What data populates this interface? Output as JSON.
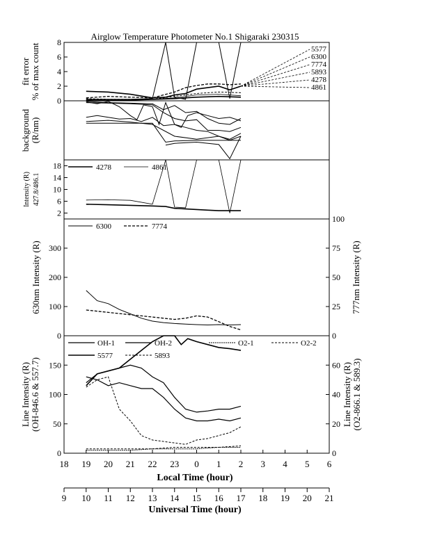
{
  "title": "Airglow Temperature Photometer No.1  Shigaraki  230315",
  "x_axes": {
    "local": {
      "label": "Local Time (hour)",
      "ticks": [
        "18",
        "19",
        "20",
        "21",
        "22",
        "23",
        "0",
        "1",
        "2",
        "3",
        "4",
        "5",
        "6"
      ]
    },
    "universal": {
      "label": "Universal Time (hour)",
      "ticks": [
        "9",
        "10",
        "11",
        "12",
        "13",
        "14",
        "15",
        "16",
        "17",
        "18",
        "19",
        "20",
        "21"
      ]
    }
  },
  "chart_data": [
    {
      "panel": "fit-error",
      "type": "line",
      "ylabel": "fit error\n% of max count",
      "ylim": [
        0,
        8
      ],
      "yticks": [
        "0",
        "2",
        "4",
        "6",
        "8"
      ],
      "x_units": "universal time (hour)",
      "legend": [
        "5577",
        "6300",
        "7774",
        "5893",
        "4278",
        "4861"
      ],
      "series": [
        {
          "name": "5577",
          "x": [
            10,
            11,
            12,
            13,
            13.6,
            14,
            14.5,
            15,
            15.5,
            16,
            16.5,
            17
          ],
          "y": [
            1.3,
            1.2,
            0.9,
            0.4,
            0.5,
            0.8,
            1.0,
            1.6,
            1.8,
            2.0,
            1.5,
            2.0
          ]
        },
        {
          "name": "6300",
          "x": [
            10,
            11,
            12,
            13,
            13.6,
            14,
            14.5,
            15,
            15.5,
            16,
            16.5,
            17
          ],
          "y": [
            0.2,
            0.2,
            0.2,
            0.3,
            8.0,
            0.5,
            0.2,
            8.0,
            8.0,
            8.0,
            0.3,
            8.0
          ]
        },
        {
          "name": "7774",
          "x": [
            10,
            11,
            12,
            13,
            14,
            14.5,
            15,
            15.5,
            16,
            16.5,
            17
          ],
          "y": [
            0.4,
            0.6,
            0.5,
            0.4,
            1.2,
            1.8,
            2.1,
            2.3,
            2.3,
            2.2,
            2.3
          ]
        },
        {
          "name": "5893",
          "x": [
            10,
            11,
            12,
            13,
            14,
            15,
            16,
            17
          ],
          "y": [
            0.3,
            0.2,
            0.2,
            0.2,
            0.6,
            1.0,
            1.2,
            1.1
          ]
        },
        {
          "name": "4278",
          "x": [
            10,
            11,
            12,
            13,
            14,
            15,
            16,
            17
          ],
          "y": [
            0.1,
            0.1,
            0.1,
            0.2,
            0.3,
            0.5,
            0.6,
            0.5
          ]
        },
        {
          "name": "4861",
          "x": [
            10,
            11,
            12,
            13,
            14,
            15,
            16,
            17
          ],
          "y": [
            0.2,
            0.1,
            0.2,
            0.2,
            0.4,
            0.8,
            0.9,
            0.7
          ]
        }
      ]
    },
    {
      "panel": "background",
      "type": "line",
      "ylabel": "background\n(R/nm)",
      "ylim": [
        0,
        100
      ],
      "x_units": "universal time (hour)",
      "series": [
        {
          "x": [
            10,
            10.5,
            11,
            11.5,
            12,
            12.3,
            12.6,
            13,
            13.3,
            13.6,
            14,
            14.3,
            14.6,
            15,
            15.5,
            16,
            16.5,
            17
          ],
          "y": [
            98,
            95,
            99,
            90,
            75,
            68,
            93,
            90,
            60,
            97,
            60,
            55,
            75,
            80,
            75,
            70,
            72,
            66
          ]
        },
        {
          "x": [
            10,
            11,
            12,
            13,
            13.5,
            14,
            14.5,
            15,
            15.5,
            16,
            16.5,
            17
          ],
          "y": [
            99,
            97,
            96,
            95,
            85,
            92,
            80,
            82,
            70,
            62,
            60,
            70
          ]
        },
        {
          "x": [
            10,
            11,
            12,
            13,
            13.5,
            14,
            14.5,
            15,
            15.5,
            16,
            16.5,
            17
          ],
          "y": [
            97,
            96,
            95,
            93,
            80,
            70,
            66,
            68,
            50,
            50,
            48,
            55
          ]
        },
        {
          "x": [
            10,
            10.5,
            11,
            11.5,
            12,
            12.5,
            13,
            13.5,
            14,
            14.5,
            15,
            15.5,
            16,
            16.5,
            17
          ],
          "y": [
            72,
            75,
            72,
            69,
            70,
            65,
            72,
            58,
            60,
            55,
            50,
            48,
            40,
            35,
            45
          ]
        },
        {
          "x": [
            10,
            11,
            12,
            13,
            14,
            15,
            16,
            16.5,
            17
          ],
          "y": [
            65,
            67,
            64,
            60,
            40,
            35,
            40,
            33,
            40
          ]
        },
        {
          "x": [
            10,
            11,
            12,
            13,
            13.6,
            14,
            15,
            16,
            17
          ],
          "y": [
            62,
            62,
            62,
            62,
            30,
            32,
            33,
            33,
            33
          ]
        },
        {
          "x": [
            13.6,
            14,
            15,
            16,
            16.5,
            17
          ],
          "y": [
            25,
            28,
            30,
            26,
            2,
            40
          ]
        }
      ]
    },
    {
      "panel": "intensity-427-486",
      "type": "line",
      "ylabel": "Intensity (R)\n427.8/486.1",
      "ylim": [
        0,
        20
      ],
      "yticks": [
        "2",
        "6",
        "10",
        "14",
        "18"
      ],
      "x_units": "universal time (hour)",
      "legend": [
        "4278",
        "4861"
      ],
      "series": [
        {
          "name": "4278",
          "x": [
            10,
            11,
            12,
            13,
            13.6,
            14,
            14.5,
            15,
            15.5,
            16,
            16.5,
            17
          ],
          "y": [
            5.0,
            4.8,
            4.6,
            4.4,
            4.2,
            3.6,
            3.4,
            3.2,
            3.0,
            2.8,
            2.8,
            2.8
          ]
        },
        {
          "name": "4861",
          "x": [
            10,
            11,
            12,
            13,
            13.6,
            14,
            14.5,
            15,
            15.5,
            16,
            16.5,
            17
          ],
          "y": [
            6.4,
            6.5,
            6.3,
            5.0,
            20,
            4.0,
            3.8,
            20,
            20,
            20,
            2.0,
            20
          ]
        }
      ]
    },
    {
      "panel": "630-777",
      "type": "line",
      "ylabel": "630nm Intensity (R)",
      "ylabel_right": "777nm Intensity (R)",
      "ylim": [
        0,
        400
      ],
      "ylim_right": [
        0,
        100
      ],
      "yticks": [
        "0",
        "100",
        "200",
        "300"
      ],
      "yticks_right": [
        "0",
        "25",
        "50",
        "75",
        "100"
      ],
      "x_units": "universal time (hour)",
      "legend": [
        "6300",
        "7774"
      ],
      "series": [
        {
          "name": "6300",
          "axis": "left",
          "x": [
            10,
            10.5,
            11,
            11.5,
            12,
            12.5,
            13,
            13.5,
            14,
            14.5,
            15,
            15.5,
            16,
            16.5,
            17
          ],
          "y": [
            155,
            120,
            110,
            90,
            75,
            60,
            50,
            45,
            42,
            40,
            38,
            37,
            38,
            37,
            38
          ]
        },
        {
          "name": "7774",
          "axis": "right",
          "x": [
            10,
            10.5,
            11,
            11.5,
            12,
            12.5,
            13,
            13.5,
            14,
            14.5,
            15,
            15.5,
            16,
            16.5,
            17
          ],
          "y": [
            22,
            21,
            20,
            19,
            18,
            17,
            16,
            15,
            14,
            15,
            17,
            16,
            12,
            8,
            5
          ]
        }
      ]
    },
    {
      "panel": "oh-o2-lines",
      "type": "line",
      "ylabel": "Line Intensity (R)\n(OH-846.6 & 557.7)",
      "ylabel_right": "Line Intensity (R)\n(O2-866.1 & 589.3)",
      "ylim": [
        0,
        200
      ],
      "ylim_right": [
        0,
        80
      ],
      "yticks": [
        "0",
        "50",
        "100",
        "150"
      ],
      "yticks_right": [
        "0",
        "20",
        "40",
        "60"
      ],
      "x_units": "universal time (hour)",
      "legend": [
        "OH-1",
        "OH-2",
        "O2-1",
        "O2-2",
        "5577",
        "5893"
      ],
      "series": [
        {
          "name": "OH-1",
          "axis": "left",
          "x": [
            10,
            10.5,
            11,
            11.5,
            12,
            12.5,
            13,
            13.5,
            14,
            14.5,
            15,
            15.5,
            16,
            16.5,
            17
          ],
          "y": [
            120,
            135,
            140,
            145,
            150,
            145,
            130,
            120,
            95,
            75,
            70,
            72,
            75,
            75,
            80
          ]
        },
        {
          "name": "OH-2",
          "axis": "left",
          "x": [
            10,
            10.5,
            11,
            11.5,
            12,
            12.5,
            13,
            13.5,
            14,
            14.5,
            15,
            15.5,
            16,
            16.5,
            17
          ],
          "y": [
            130,
            125,
            115,
            120,
            115,
            110,
            110,
            95,
            75,
            60,
            55,
            55,
            58,
            55,
            60
          ]
        },
        {
          "name": "O2-1",
          "axis": "right",
          "x": [
            10,
            11,
            12,
            13,
            14,
            15,
            16,
            17
          ],
          "y": [
            2,
            2,
            2,
            3,
            3,
            3,
            4,
            4
          ]
        },
        {
          "name": "O2-2",
          "axis": "right",
          "x": [
            10,
            11,
            12,
            13,
            14,
            15,
            16,
            17
          ],
          "y": [
            3,
            3,
            3,
            3,
            4,
            4,
            4,
            5
          ]
        },
        {
          "name": "5577",
          "axis": "left",
          "x": [
            10,
            10.5,
            11,
            11.5,
            12,
            12.5,
            13,
            13.5,
            13.8,
            14,
            14.3,
            14.6,
            15,
            15.5,
            16,
            16.5,
            17
          ],
          "y": [
            115,
            135,
            140,
            145,
            160,
            175,
            190,
            200,
            205,
            200,
            185,
            195,
            190,
            185,
            180,
            178,
            175
          ]
        },
        {
          "name": "5893",
          "axis": "right",
          "x": [
            10,
            10.5,
            11,
            11.5,
            12,
            12.5,
            13,
            13.5,
            14,
            14.5,
            15,
            15.5,
            16,
            16.5,
            17
          ],
          "y": [
            45,
            50,
            52,
            30,
            22,
            12,
            9,
            8,
            7,
            6,
            9,
            10,
            12,
            14,
            18
          ]
        }
      ]
    }
  ]
}
